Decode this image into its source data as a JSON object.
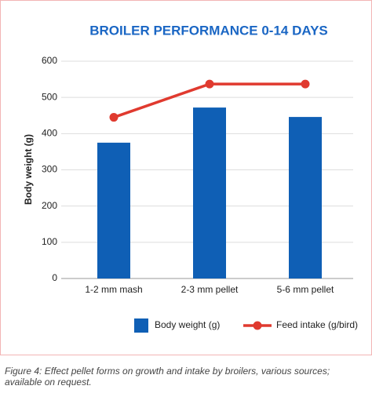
{
  "chart_data": {
    "type": "bar",
    "title": "BROILER PERFORMANCE 0-14 DAYS",
    "y_label": "Body weight (g)",
    "categories": [
      "1-2 mm mash",
      "2-3 mm pellet",
      "5-6 mm pellet"
    ],
    "series": [
      {
        "name": "Body weight (g)",
        "type": "bar",
        "color": "#0f5fb5",
        "values": [
          375,
          472,
          446
        ]
      },
      {
        "name": "Feed intake (g/bird)",
        "type": "line",
        "color": "#e03a2f",
        "values": [
          445,
          537,
          537
        ]
      }
    ],
    "ylim": [
      0,
      600
    ],
    "yticks": [
      0,
      100,
      200,
      300,
      400,
      500,
      600
    ],
    "grid": true,
    "legend": "bottom"
  },
  "caption": "Figure 4: Effect pellet forms on growth and intake by broilers, various sources; available on request."
}
